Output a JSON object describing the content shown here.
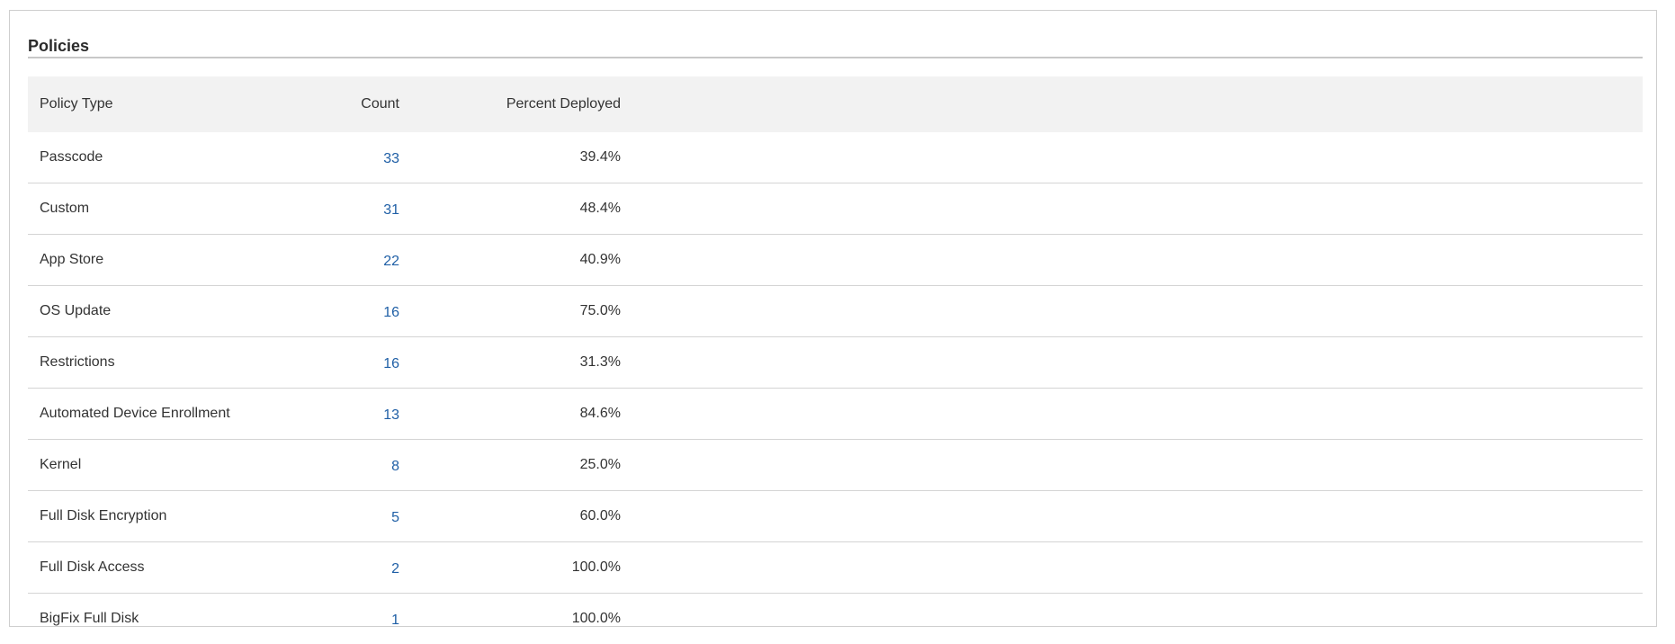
{
  "panel": {
    "title": "Policies"
  },
  "table": {
    "headers": [
      "Policy Type",
      "Count",
      "Percent Deployed"
    ],
    "rows": [
      {
        "type": "Passcode",
        "count": "33",
        "percent": "39.4%"
      },
      {
        "type": "Custom",
        "count": "31",
        "percent": "48.4%"
      },
      {
        "type": "App Store",
        "count": "22",
        "percent": "40.9%"
      },
      {
        "type": "OS Update",
        "count": "16",
        "percent": "75.0%"
      },
      {
        "type": "Restrictions",
        "count": "16",
        "percent": "31.3%"
      },
      {
        "type": "Automated Device Enrollment",
        "count": "13",
        "percent": "84.6%"
      },
      {
        "type": "Kernel",
        "count": "8",
        "percent": "25.0%"
      },
      {
        "type": "Full Disk Encryption",
        "count": "5",
        "percent": "60.0%"
      },
      {
        "type": "Full Disk Access",
        "count": "2",
        "percent": "100.0%"
      },
      {
        "type": "BigFix Full Disk",
        "count": "1",
        "percent": "100.0%"
      }
    ]
  },
  "colors": {
    "link": "#1f5fa6",
    "header_bg": "#f2f2f2"
  }
}
